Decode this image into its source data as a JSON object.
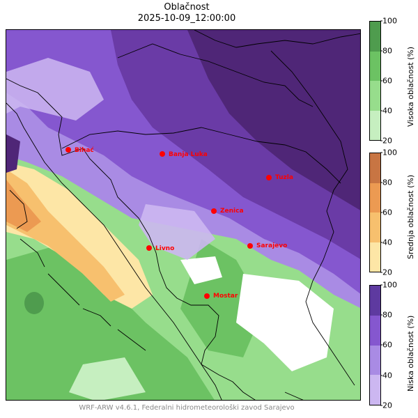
{
  "title": {
    "line1": "Oblačnost",
    "line2": "2025-10-09_12:00:00"
  },
  "footer": "WRF-ARW v4.6.1, Federalni hidrometeorološki zavod Sarajevo",
  "map": {
    "colors": {
      "low_cloud": [
        "#ccb7f1",
        "#a98be4",
        "#8557cf",
        "#6a3ba6",
        "#4f2677"
      ],
      "mid_cloud": [
        "#fde6a6",
        "#f7c06e",
        "#ec9a52",
        "#c87543",
        "#a5672f"
      ],
      "high_cloud": [
        "#c6efc0",
        "#97dd8c",
        "#6cc263",
        "#4f9c4e"
      ],
      "city_marker": "#ff0000",
      "border": "#000000"
    },
    "cities": [
      {
        "name": "Bihać"
      },
      {
        "name": "Banja Luka"
      },
      {
        "name": "Tuzla"
      },
      {
        "name": "Zenica"
      },
      {
        "name": "Livno"
      },
      {
        "name": "Sarajevo"
      },
      {
        "name": "Mostar"
      }
    ]
  },
  "colorbars": [
    {
      "label": "Visoka oblačnost (%)",
      "ticks": [
        "20",
        "40",
        "60",
        "80",
        "100"
      ],
      "colors": [
        "#c6efc0",
        "#97dd8c",
        "#6cc263",
        "#4f9c4e"
      ]
    },
    {
      "label": "Srednja oblačnost (%)",
      "ticks": [
        "20",
        "40",
        "60",
        "80",
        "100"
      ],
      "colors": [
        "#fde6a6",
        "#f7c06e",
        "#ec9a52",
        "#c87543"
      ]
    },
    {
      "label": "Niska oblačnost (%)",
      "ticks": [
        "20",
        "40",
        "60",
        "80",
        "100"
      ],
      "colors": [
        "#ccb7f1",
        "#a98be4",
        "#8557cf",
        "#5e3aa0"
      ]
    }
  ]
}
